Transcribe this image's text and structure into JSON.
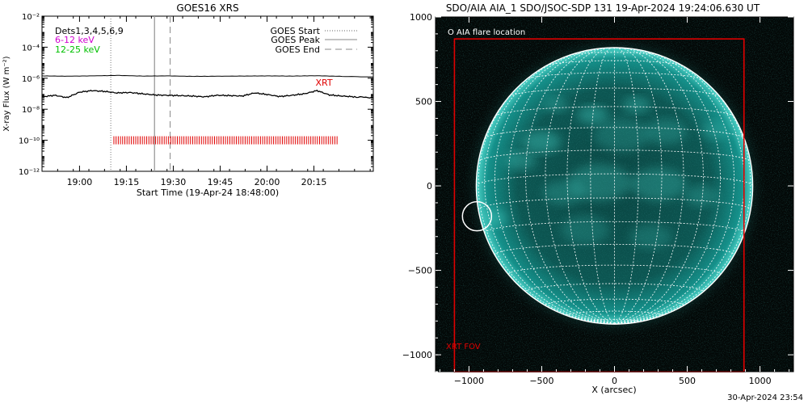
{
  "left_panel": {
    "title": "GOES16 XRS",
    "ylabel": "X-ray Flux (W m⁻²)",
    "xlabel": "Start Time (19-Apr-24 18:48:00)",
    "dets_label": "Dets1,3,4,5,6,9",
    "band_labels": [
      {
        "text": "6-12 keV",
        "color": "#d000d0"
      },
      {
        "text": "12-25 keV",
        "color": "#00c000"
      }
    ],
    "legend": [
      {
        "label": "GOES Start",
        "style": "dotted"
      },
      {
        "label": "GOES Peak",
        "style": "solid"
      },
      {
        "label": "GOES End",
        "style": "dashed"
      }
    ],
    "xrt_label": "XRT",
    "xrt_color": "#e00000"
  },
  "right_panel": {
    "title": "SDO/AIA AIA_1 SDO/JSOC-SDP 131 19-Apr-2024 19:24:06.630 UT",
    "xlabel": "X (arcsec)",
    "flare_legend": "O AIA flare location",
    "fov_label": "XRT FOV",
    "fov_color": "#e00000",
    "disk_color": "#0f9a92"
  },
  "footer_stamp": "30-Apr-2024 23:54",
  "chart_data": [
    {
      "type": "line",
      "title": "GOES16 XRS",
      "xlabel": "Start Time (19-Apr-24 18:48:00)",
      "ylabel": "X-ray Flux (W m⁻²)",
      "x_unit": "minutes since 18:48 UT",
      "xlim": [
        0,
        106
      ],
      "ylim_log10": [
        -12,
        -2
      ],
      "y_scale": "log",
      "x_ticks": [
        {
          "v": 12,
          "label": "19:00"
        },
        {
          "v": 27,
          "label": "19:15"
        },
        {
          "v": 42,
          "label": "19:30"
        },
        {
          "v": 57,
          "label": "19:45"
        },
        {
          "v": 72,
          "label": "20:00"
        },
        {
          "v": 87,
          "label": "20:15"
        }
      ],
      "y_ticks": [
        {
          "v": -2,
          "label": "10⁻²"
        },
        {
          "v": -4,
          "label": "10⁻⁴"
        },
        {
          "v": -6,
          "label": "10⁻⁶"
        },
        {
          "v": -8,
          "label": "10⁻⁸"
        },
        {
          "v": -10,
          "label": "10⁻¹⁰"
        },
        {
          "v": -12,
          "label": "10⁻¹²"
        }
      ],
      "series": [
        {
          "name": "long",
          "color": "#000000",
          "x": [
            0,
            8,
            16,
            24,
            32,
            40,
            48,
            56,
            64,
            72,
            80,
            88,
            96,
            106
          ],
          "log10_flux": [
            -5.85,
            -5.87,
            -5.85,
            -5.82,
            -5.86,
            -5.85,
            -5.88,
            -5.87,
            -5.86,
            -5.85,
            -5.86,
            -5.84,
            -5.88,
            -5.92
          ]
        },
        {
          "name": "short",
          "color": "#000000",
          "x": [
            0,
            4,
            8,
            12,
            16,
            20,
            24,
            28,
            32,
            36,
            40,
            44,
            48,
            52,
            56,
            60,
            64,
            68,
            72,
            76,
            80,
            84,
            88,
            92,
            96,
            100,
            106
          ],
          "log10_flux": [
            -7.2,
            -7.1,
            -7.25,
            -6.9,
            -6.8,
            -6.85,
            -6.95,
            -6.92,
            -7.0,
            -7.08,
            -7.1,
            -7.12,
            -7.15,
            -7.2,
            -7.1,
            -7.12,
            -7.15,
            -6.95,
            -7.05,
            -7.18,
            -7.1,
            -7.0,
            -6.8,
            -7.08,
            -7.15,
            -7.2,
            -7.25
          ]
        }
      ],
      "goes_start": 22,
      "goes_peak": 36,
      "goes_end": 41,
      "xrt_ticks": {
        "start": 23,
        "end": 95,
        "step": 0.7,
        "log10_flux": -10
      },
      "legend_position": "top-right"
    },
    {
      "type": "image",
      "title": "SDO/AIA AIA_1 SDO/JSOC-SDP 131 19-Apr-2024 19:24:06.630 UT",
      "xlabel": "X (arcsec)",
      "xlim": [
        -1230,
        1230
      ],
      "ylim": [
        -1100,
        1000
      ],
      "x_ticks": [
        -1000,
        -500,
        0,
        500,
        1000
      ],
      "y_ticks": [
        1000,
        500,
        0,
        -500,
        -1000
      ],
      "solar_radius_arcsec": 950,
      "grid_step_deg": 10,
      "b0_deg": -5,
      "flare_location": {
        "x": -945,
        "y": -180,
        "r": 100
      },
      "xrt_fov": {
        "x0": -1100,
        "x1": 890,
        "y0": -1100,
        "y1": 870
      }
    }
  ]
}
